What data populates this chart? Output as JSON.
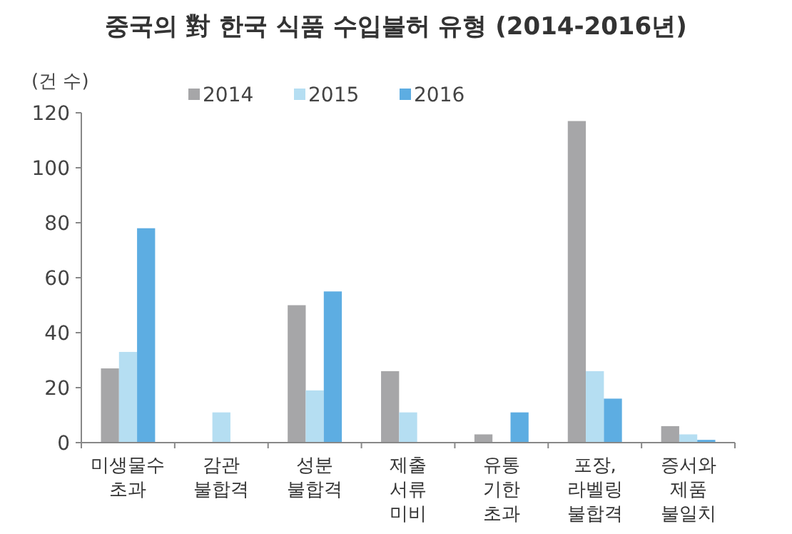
{
  "chart_data": {
    "type": "bar",
    "title": "중국의 對 한국 식품 수입불허 유형 (2014-2016년)",
    "ylabel": "(건 수)",
    "categories": [
      "미생물수\n초과",
      "감관\n불합격",
      "성분\n불합격",
      "제출\n서류\n미비",
      "유통\n기한\n초과",
      "포장,\n라벨링\n불합격",
      "증서와\n제품\n불일치"
    ],
    "series": [
      {
        "name": "2014",
        "color": "#a6a6a8",
        "values": [
          27,
          0,
          50,
          26,
          3,
          117,
          6
        ]
      },
      {
        "name": "2015",
        "color": "#b5def2",
        "values": [
          33,
          11,
          19,
          11,
          0,
          26,
          3
        ]
      },
      {
        "name": "2016",
        "color": "#5dade2",
        "values": [
          78,
          0,
          55,
          0,
          11,
          16,
          1
        ]
      }
    ],
    "ylim": [
      0,
      120
    ],
    "yticks": [
      0,
      20,
      40,
      60,
      80,
      100,
      120
    ],
    "legend": "top",
    "grid": false
  }
}
